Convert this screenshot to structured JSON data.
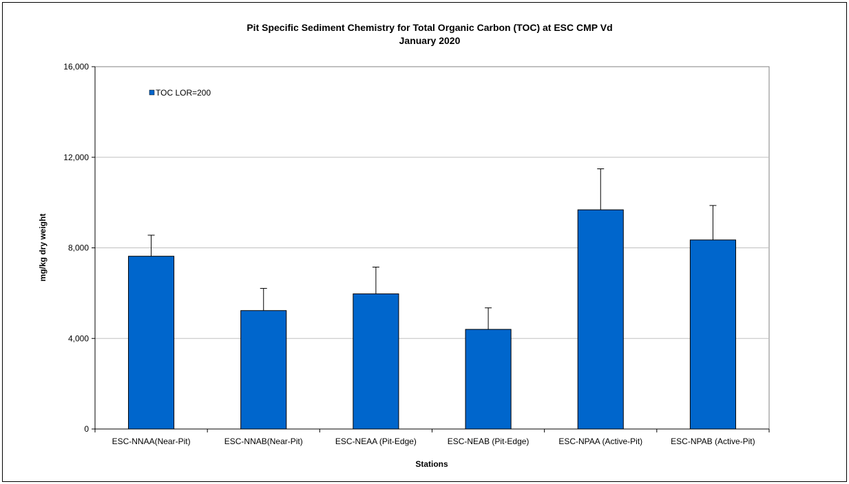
{
  "chart_data": {
    "type": "bar",
    "title": "Pit Specific Sediment Chemistry for Total Organic Carbon (TOC) at  ESC CMP Vd",
    "subtitle": "January 2020",
    "xlabel": "Stations",
    "ylabel": "mg/kg dry weight",
    "categories": [
      "ESC-NNAA(Near-Pit)",
      "ESC-NNAB(Near-Pit)",
      "ESC-NEAA (Pit-Edge)",
      "ESC-NEAB (Pit-Edge)",
      "ESC-NPAA (Active-Pit)",
      "ESC-NPAB (Active-Pit)"
    ],
    "series": [
      {
        "name": "TOC LOR=200",
        "values": [
          7630,
          5230,
          5970,
          4400,
          9680,
          8350
        ],
        "error_plus": [
          930,
          980,
          1180,
          950,
          1810,
          1520
        ],
        "color": "#0066CC"
      }
    ],
    "ylim": [
      0,
      16000
    ],
    "yticks": [
      0,
      4000,
      8000,
      12000,
      16000
    ],
    "ytick_labels": [
      "0",
      "4,000",
      "8,000",
      "12,000",
      "16,000"
    ],
    "grid": true,
    "gridline_color": "#C0C0C0",
    "legend_position": "top-left"
  }
}
